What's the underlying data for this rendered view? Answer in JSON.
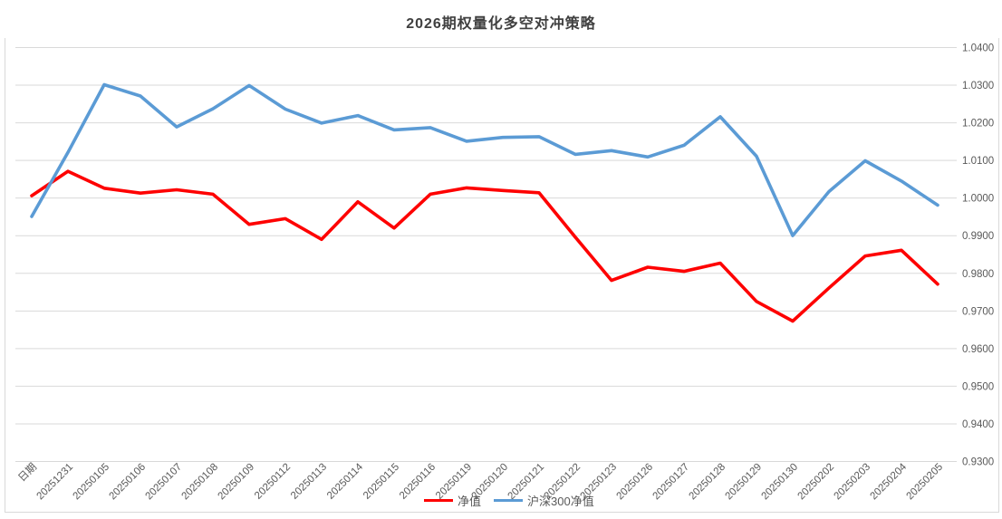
{
  "title": "2026期权量化多空对冲策略",
  "colors": {
    "series_red": "#fe0000",
    "series_blue": "#5b9bd5",
    "gridline": "#d9d9d9",
    "border": "#d9d9d9",
    "tick_label": "#595959",
    "title_text": "#404040"
  },
  "legend": {
    "items": [
      {
        "label": "净值",
        "color": "#fe0000"
      },
      {
        "label": "沪深300净值",
        "color": "#5b9bd5"
      }
    ]
  },
  "chart_data": {
    "type": "line",
    "title": "2026期权量化多空对冲策略",
    "categories": [
      "日期",
      "20251231",
      "20250105",
      "20250106",
      "20250107",
      "20250108",
      "20250109",
      "20250112",
      "20250113",
      "20250114",
      "20250115",
      "20250116",
      "20250119",
      "20250120",
      "20250121",
      "20250122",
      "20250123",
      "20250126",
      "20250127",
      "20250128",
      "20250129",
      "20250130",
      "20250202",
      "20250203",
      "20250204",
      "20250205"
    ],
    "series": [
      {
        "name": "净值",
        "color": "#fe0000",
        "values": [
          1.0005,
          1.007,
          1.0025,
          1.0012,
          1.0021,
          1.0009,
          0.9929,
          0.9944,
          0.9889,
          0.9989,
          0.9919,
          1.0009,
          1.0026,
          1.0019,
          1.0013,
          0.9895,
          0.978,
          0.9815,
          0.9804,
          0.9826,
          0.9724,
          0.9672,
          0.976,
          0.9845,
          0.986,
          0.977
        ]
      },
      {
        "name": "沪深300净值",
        "color": "#5b9bd5",
        "values": [
          0.995,
          1.012,
          1.03,
          1.027,
          1.0188,
          1.0236,
          1.0298,
          1.0235,
          1.0198,
          1.0218,
          1.018,
          1.0186,
          1.015,
          1.016,
          1.0162,
          1.0115,
          1.0125,
          1.0108,
          1.0139,
          1.0215,
          1.011,
          0.9899,
          1.0016,
          1.0098,
          1.0044,
          0.998
        ]
      }
    ],
    "xlabel": "",
    "ylabel": "",
    "ylim": [
      0.93,
      1.04
    ],
    "ytick_step": 0.01,
    "yticks": [
      "1.0400",
      "1.0300",
      "1.0200",
      "1.0100",
      "1.0000",
      "0.9900",
      "0.9800",
      "0.9700",
      "0.9600",
      "0.9500",
      "0.9400",
      "0.9300"
    ],
    "y_axis_side": "right",
    "x_labels_rotation_deg": 45,
    "grid": true,
    "legend_position": "bottom"
  }
}
